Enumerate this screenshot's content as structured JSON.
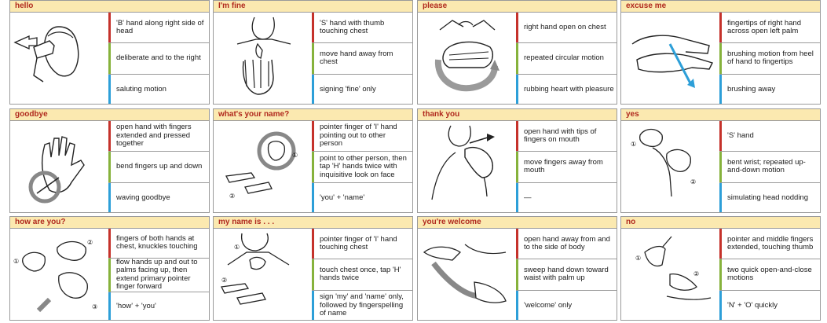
{
  "colors": {
    "title_bg": "#fbe9b0",
    "title_text": "#b0281d",
    "handshape": "#c5322b",
    "movement": "#86b23c",
    "meaning": "#2d9fd8"
  },
  "cards": [
    {
      "title": "hello",
      "icon": "saluting-hand-icon",
      "r1": "'B' hand along right side of head",
      "r2": "deliberate and to the right",
      "r3": "saluting motion"
    },
    {
      "title": "I'm fine",
      "icon": "thumb-chest-icon",
      "r1": "'S' hand with thumb touching chest",
      "r2": "move hand away from chest",
      "r3": "signing 'fine' only"
    },
    {
      "title": "please",
      "icon": "circular-hand-chest-icon",
      "r1": "right hand open on chest",
      "r2": "repeated circular motion",
      "r3": "rubbing heart with pleasure"
    },
    {
      "title": "excuse me",
      "icon": "brushing-palm-icon",
      "r1": "fingertips of right hand across open left palm",
      "r2": "brushing motion from heel of hand to fingertips",
      "r3": "brushing away"
    },
    {
      "title": "goodbye",
      "icon": "waving-hand-icon",
      "r1": "open hand with fingers extended and pressed together",
      "r2": "bend fingers up and down",
      "r3": "waving goodbye"
    },
    {
      "title": "what's your name?",
      "icon": "pointing-hand-icon",
      "r1": "pointer finger of 'I' hand pointing out to other person",
      "r2": "point to other person, then tap 'H' hands twice with inquisitive look on face",
      "r3": "'you' + 'name'"
    },
    {
      "title": "thank you",
      "icon": "hand-mouth-icon",
      "r1": "open hand with tips of fingers on mouth",
      "r2": "move fingers away from mouth",
      "r3": "—"
    },
    {
      "title": "yes",
      "icon": "nodding-fist-icon",
      "r1": "'S' hand",
      "r2": "bent wrist; repeated up-and-down motion",
      "r3": "simulating head nodding"
    },
    {
      "title": "how are you?",
      "icon": "knuckles-hands-icon",
      "r1": "fingers of both hands at chest, knuckles touching",
      "r2": "flow hands up and out to palms facing up, then extend primary pointer finger forward",
      "r3": "'how' + 'you'"
    },
    {
      "title": "my name is . . .",
      "icon": "tap-hands-icon",
      "r1": "pointer finger of 'I' hand touching chest",
      "r2": "touch chest once, tap 'H' hands twice",
      "r3": "sign 'my' and 'name' only, followed by fingerspelling of name"
    },
    {
      "title": "you're welcome",
      "icon": "sweeping-hand-icon",
      "r1": "open hand away from and to the side of body",
      "r2": "sweep hand down toward waist with palm up",
      "r3": "'welcome' only"
    },
    {
      "title": "no",
      "icon": "snapping-fingers-icon",
      "r1": "pointer and middle fingers extended, touching thumb",
      "r2": "two quick open-and-close motions",
      "r3": "'N' + 'O' quickly"
    }
  ]
}
